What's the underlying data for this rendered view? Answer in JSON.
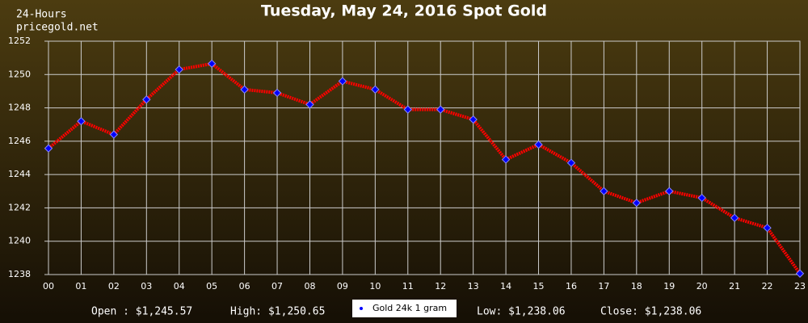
{
  "chart_data": {
    "type": "line",
    "title": "Tuesday, May 24, 2016 Spot Gold",
    "corner_texts": [
      "24-Hours",
      "pricegold.net"
    ],
    "categories": [
      "00",
      "01",
      "02",
      "03",
      "04",
      "05",
      "06",
      "07",
      "08",
      "09",
      "10",
      "11",
      "12",
      "13",
      "14",
      "15",
      "16",
      "17",
      "18",
      "19",
      "20",
      "21",
      "22",
      "23"
    ],
    "series": [
      {
        "name": "Gold 24k 1 gram",
        "color": "#ff0000",
        "marker_color": "#0000ff",
        "values": [
          1245.57,
          1247.2,
          1246.4,
          1248.5,
          1250.3,
          1250.65,
          1249.1,
          1248.9,
          1248.2,
          1249.6,
          1249.1,
          1247.9,
          1247.9,
          1247.3,
          1244.9,
          1245.8,
          1244.7,
          1243.0,
          1242.3,
          1243.0,
          1242.6,
          1241.4,
          1240.8,
          1238.06
        ]
      }
    ],
    "ylim": [
      1238,
      1252
    ],
    "yticks": [
      1238,
      1240,
      1242,
      1244,
      1246,
      1248,
      1250,
      1252
    ],
    "grid": true,
    "stats_left": [
      "Open : $1,245.57",
      "High: $1,250.65"
    ],
    "stats_right": [
      "Low: $1,238.06",
      "Close: $1,238.06"
    ]
  }
}
